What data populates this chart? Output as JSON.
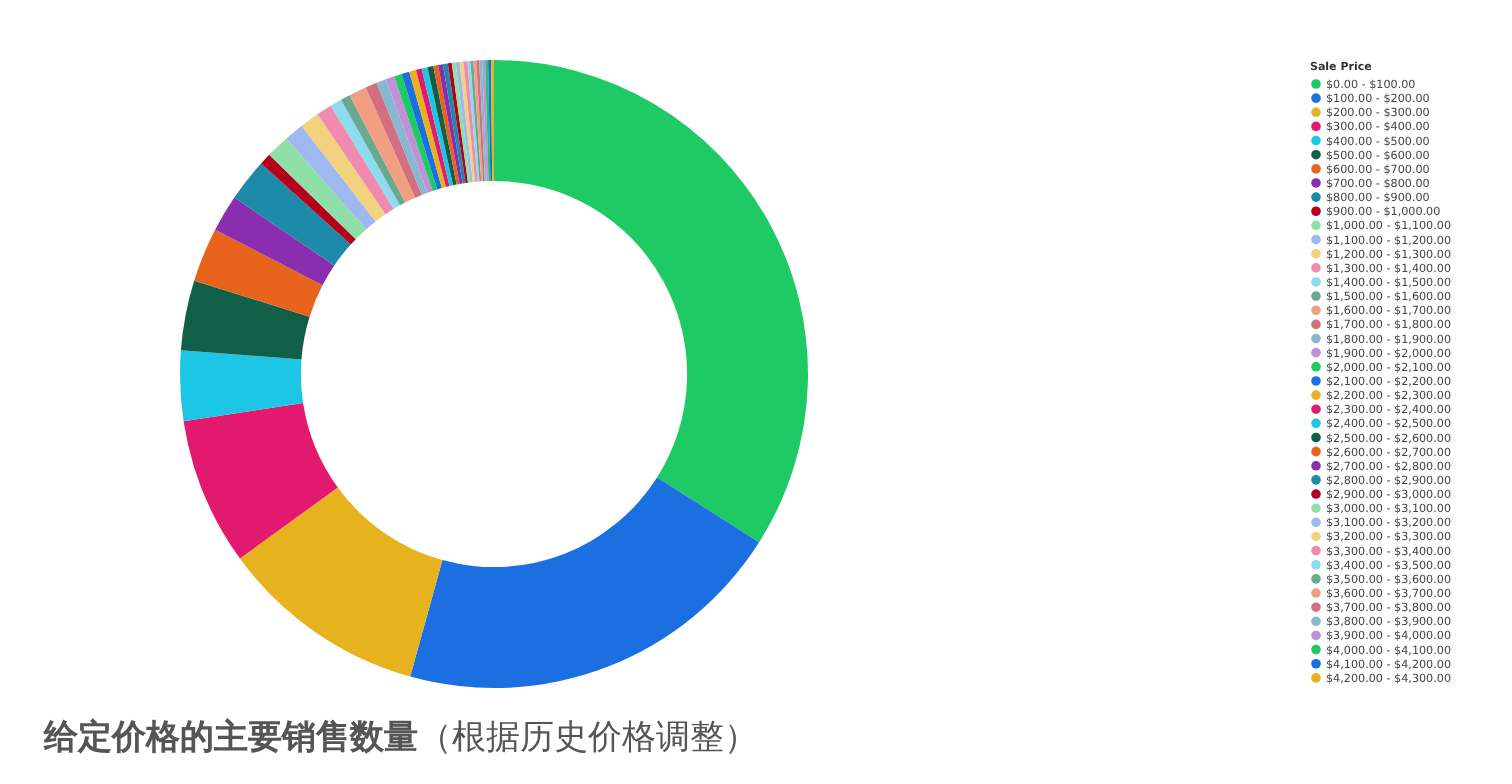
{
  "chart_data": {
    "type": "donut",
    "title": "给定价格的主要销售数量",
    "subtitle": "（根据历史价格调整）",
    "legend_title": "Sale Price",
    "legend": "right",
    "categories": [
      "$0.00 - $100.00",
      "$100.00 - $200.00",
      "$200.00 - $300.00",
      "$300.00 - $400.00",
      "$400.00 - $500.00",
      "$500.00 - $600.00",
      "$600.00 - $700.00",
      "$700.00 - $800.00",
      "$800.00 - $900.00",
      "$900.00 - $1,000.00",
      "$1,000.00 - $1,100.00",
      "$1,100.00 - $1,200.00",
      "$1,200.00 - $1,300.00",
      "$1,300.00 - $1,400.00",
      "$1,400.00 - $1,500.00",
      "$1,500.00 - $1,600.00",
      "$1,600.00 - $1,700.00",
      "$1,700.00 - $1,800.00",
      "$1,800.00 - $1,900.00",
      "$1,900.00 - $2,000.00",
      "$2,000.00 - $2,100.00",
      "$2,100.00 - $2,200.00",
      "$2,200.00 - $2,300.00",
      "$2,300.00 - $2,400.00",
      "$2,400.00 - $2,500.00",
      "$2,500.00 - $2,600.00",
      "$2,600.00 - $2,700.00",
      "$2,700.00 - $2,800.00",
      "$2,800.00 - $2,900.00",
      "$2,900.00 - $3,000.00",
      "$3,000.00 - $3,100.00",
      "$3,100.00 - $3,200.00",
      "$3,200.00 - $3,300.00",
      "$3,300.00 - $3,400.00",
      "$3,400.00 - $3,500.00",
      "$3,500.00 - $3,600.00",
      "$3,600.00 - $3,700.00",
      "$3,700.00 - $3,800.00",
      "$3,800.00 - $3,900.00",
      "$3,900.00 - $4,000.00",
      "$4,000.00 - $4,100.00",
      "$4,100.00 - $4,200.00",
      "$4,200.00 - $4,300.00"
    ],
    "values": [
      34.0,
      20.3,
      10.7,
      7.6,
      3.6,
      3.6,
      2.8,
      1.9,
      2.2,
      0.6,
      1.2,
      1.0,
      1.0,
      0.8,
      0.6,
      0.5,
      0.9,
      0.6,
      0.5,
      0.45,
      0.4,
      0.4,
      0.35,
      0.3,
      0.3,
      0.3,
      0.25,
      0.25,
      0.25,
      0.2,
      0.2,
      0.2,
      0.2,
      0.2,
      0.15,
      0.15,
      0.15,
      0.15,
      0.15,
      0.15,
      0.15,
      0.15,
      0.15
    ],
    "colors": [
      "#1dca63",
      "#1b6fe0",
      "#e6b21e",
      "#e3196f",
      "#1ec6e6",
      "#125f48",
      "#e8641c",
      "#8a2eb0",
      "#1c8aa8",
      "#b5001d",
      "#8ee0a8",
      "#9eb8f0",
      "#f2d27e",
      "#f08ab0",
      "#8cdcf0",
      "#6aa890",
      "#f0a080",
      "#d07080",
      "#88b8d0",
      "#c090d8",
      "#1dca63",
      "#1b6fe0",
      "#e6b21e",
      "#e3196f",
      "#1ec6e6",
      "#125f48",
      "#e8641c",
      "#8a2eb0",
      "#1c8aa8",
      "#b5001d",
      "#8ee0a8",
      "#9eb8f0",
      "#f2d27e",
      "#f08ab0",
      "#8cdcf0",
      "#6aa890",
      "#f0a080",
      "#d07080",
      "#88b8d0",
      "#c090d8",
      "#1dca63",
      "#1b6fe0",
      "#e6b21e"
    ]
  }
}
